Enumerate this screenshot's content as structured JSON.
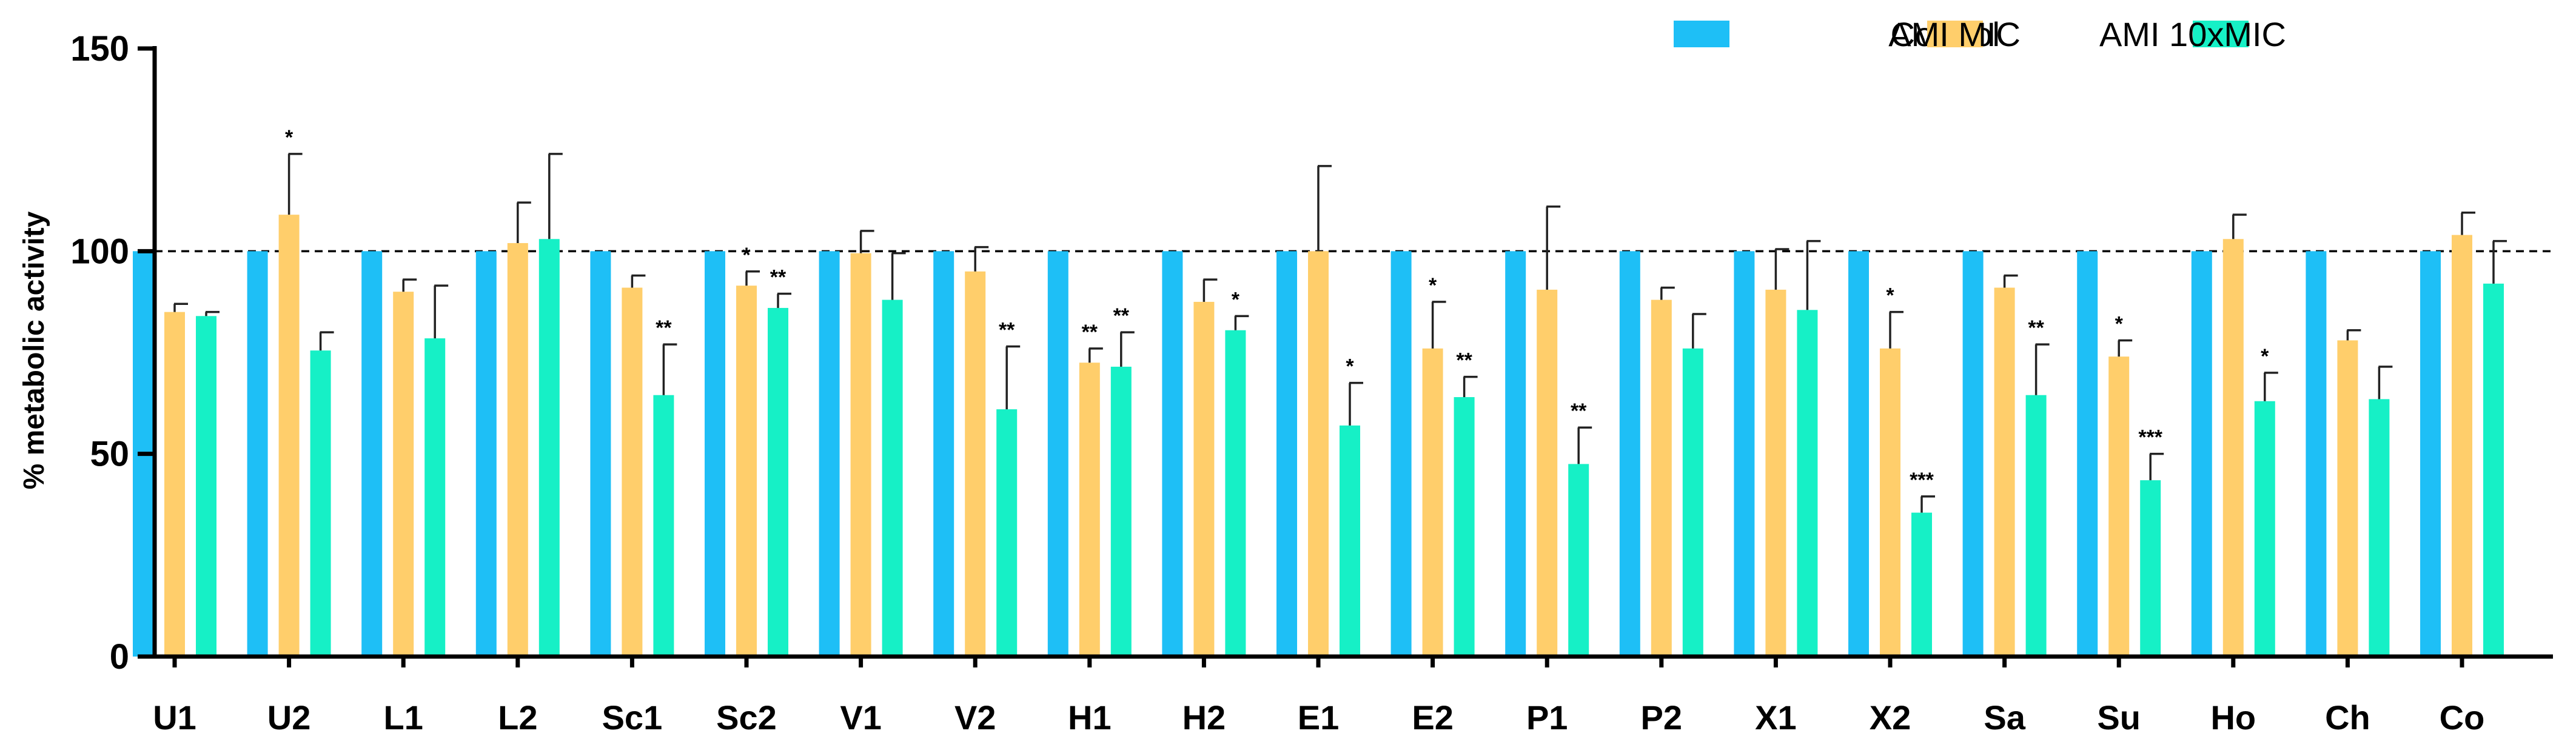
{
  "chart_data": {
    "type": "bar",
    "title": "",
    "xlabel": "",
    "ylabel": "% metabolic activity",
    "ylim": [
      0,
      150
    ],
    "yticks": [
      0,
      50,
      100,
      150
    ],
    "reference_line": 100,
    "legend_position": "top-right",
    "categories": [
      "U1",
      "U2",
      "L1",
      "L2",
      "Sc1",
      "Sc2",
      "V1",
      "V2",
      "H1",
      "H2",
      "E1",
      "E2",
      "P1",
      "P2",
      "X1",
      "X2",
      "Sa",
      "Su",
      "Ho",
      "Ch",
      "Co"
    ],
    "series": [
      {
        "name": "Control",
        "color": "#1EBFF6",
        "values": [
          100,
          100,
          100,
          100,
          100,
          100,
          100,
          100,
          100,
          100,
          100,
          100,
          100,
          100,
          100,
          100,
          100,
          100,
          100,
          100,
          100
        ],
        "errors": [
          0,
          0,
          0,
          0,
          0,
          0,
          0,
          0,
          0,
          0,
          0,
          0,
          0,
          0,
          0,
          0,
          0,
          0,
          0,
          0,
          0
        ],
        "significance": [
          "",
          "",
          "",
          "",
          "",
          "",
          "",
          "",
          "",
          "",
          "",
          "",
          "",
          "",
          "",
          "",
          "",
          "",
          "",
          "",
          ""
        ]
      },
      {
        "name": "AMI MIC",
        "color": "#FFCE6B",
        "values": [
          85,
          109,
          90,
          102,
          91,
          91.5,
          99.5,
          95,
          72.5,
          87.5,
          100,
          76,
          90.5,
          88,
          90.5,
          76,
          91,
          74,
          103,
          78,
          104
        ],
        "errors": [
          2,
          15,
          3,
          10,
          3,
          3.5,
          5.5,
          6,
          3.5,
          5.5,
          21,
          11.5,
          20.5,
          3,
          10,
          9,
          3,
          4,
          6,
          2.5,
          5.5
        ],
        "significance": [
          "",
          "*",
          "",
          "",
          "",
          "*",
          "",
          "",
          "**",
          "",
          "",
          "*",
          "",
          "",
          "",
          "*",
          "",
          "*",
          "",
          "",
          ""
        ]
      },
      {
        "name": "AMI 10xMIC",
        "color": "#16F0C6",
        "values": [
          84,
          75.5,
          78.5,
          103,
          64.5,
          86,
          88,
          61,
          71.5,
          80.5,
          57,
          64,
          47.5,
          76,
          85.5,
          35.5,
          64.5,
          43.5,
          63,
          63.5,
          92
        ],
        "errors": [
          1,
          4.5,
          13,
          21,
          12.5,
          3.5,
          11.5,
          15.5,
          8.5,
          3.5,
          10.5,
          5,
          9,
          8.5,
          17,
          4,
          12.5,
          6.5,
          7,
          8,
          10.5
        ],
        "significance": [
          "",
          "",
          "",
          "",
          "**",
          "**",
          "",
          "**",
          "**",
          "*",
          "*",
          "**",
          "**",
          "",
          "",
          "***",
          "**",
          "***",
          "*",
          "",
          ""
        ]
      }
    ]
  }
}
